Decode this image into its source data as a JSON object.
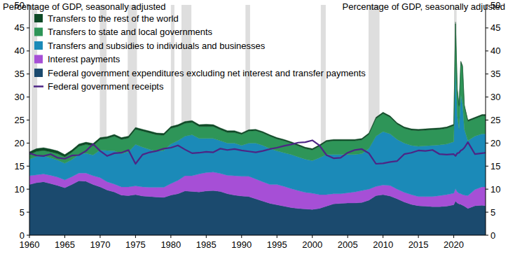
{
  "chart_data": {
    "type": "area",
    "ylabel": "Percentage of GDP, seasonally adjusted",
    "y2label": "Percentage of GDP, seasonally adjusted",
    "stacked": true,
    "grid": false,
    "legend": "top-left",
    "xlim": [
      1960,
      2024.5
    ],
    "xticks": [
      1960,
      1965,
      1970,
      1975,
      1980,
      1985,
      1990,
      1995,
      2000,
      2005,
      2010,
      2015,
      2020
    ],
    "ylim": [
      0,
      50
    ],
    "yticks": [
      0,
      5,
      10,
      15,
      20,
      25,
      30,
      35,
      40,
      45,
      50
    ],
    "y2lim": [
      0,
      50
    ],
    "y2ticks": [
      0,
      5,
      10,
      15,
      20,
      25,
      30,
      35,
      40,
      45,
      50
    ],
    "recessions": [
      [
        1960.3,
        1961.1
      ],
      [
        1969.95,
        1970.9
      ],
      [
        1973.9,
        1975.2
      ],
      [
        1980.0,
        1980.5
      ],
      [
        1981.5,
        1982.9
      ],
      [
        1990.55,
        1991.2
      ],
      [
        2001.2,
        2001.9
      ],
      [
        2007.95,
        2009.5
      ],
      [
        2020.05,
        2020.4
      ]
    ],
    "x": [
      1960,
      1961,
      1962,
      1963,
      1964,
      1965,
      1966,
      1967,
      1968,
      1969,
      1970,
      1971,
      1972,
      1973,
      1974,
      1975,
      1976,
      1977,
      1978,
      1979,
      1980,
      1981,
      1982,
      1983,
      1984,
      1985,
      1986,
      1987,
      1988,
      1989,
      1990,
      1991,
      1992,
      1993,
      1994,
      1995,
      1996,
      1997,
      1998,
      1999,
      2000,
      2001,
      2002,
      2003,
      2004,
      2005,
      2006,
      2007,
      2008,
      2009,
      2010,
      2011,
      2012,
      2013,
      2014,
      2015,
      2016,
      2017,
      2018,
      2019,
      2020,
      2020.25,
      2020.5,
      2020.75,
      2021,
      2021.25,
      2021.5,
      2022,
      2023,
      2024,
      2024.5
    ],
    "series": [
      {
        "name": "Transfers to the rest of the world",
        "type": "area",
        "color": "#0e4a26",
        "values": [
          0.6,
          0.6,
          0.6,
          0.6,
          0.6,
          0.5,
          0.5,
          0.5,
          0.5,
          0.5,
          0.4,
          0.4,
          0.4,
          0.4,
          0.4,
          0.4,
          0.4,
          0.4,
          0.4,
          0.4,
          0.4,
          0.4,
          0.4,
          0.4,
          0.4,
          0.5,
          0.4,
          0.4,
          0.4,
          0.4,
          0.3,
          0.3,
          0.3,
          0.3,
          0.3,
          0.3,
          0.3,
          0.3,
          0.3,
          0.3,
          0.3,
          0.3,
          0.3,
          0.3,
          0.3,
          0.3,
          0.3,
          0.3,
          0.3,
          0.3,
          0.3,
          0.3,
          0.3,
          0.3,
          0.3,
          0.3,
          0.3,
          0.3,
          0.3,
          0.3,
          0.3,
          0.4,
          0.3,
          0.3,
          0.3,
          0.3,
          0.3,
          0.3,
          0.3,
          0.3,
          0.3
        ]
      },
      {
        "name": "Transfers to state and local governments",
        "type": "area",
        "color": "#2e9558",
        "values": [
          1.0,
          1.1,
          1.2,
          1.3,
          1.4,
          1.4,
          1.6,
          1.8,
          1.9,
          2.0,
          2.3,
          2.6,
          3.2,
          3.1,
          3.0,
          3.3,
          3.5,
          3.6,
          3.6,
          3.3,
          3.4,
          3.1,
          2.8,
          2.7,
          2.6,
          2.6,
          2.6,
          2.4,
          2.3,
          2.3,
          2.4,
          2.6,
          2.7,
          2.7,
          2.7,
          2.6,
          2.6,
          2.5,
          2.4,
          2.3,
          2.3,
          2.5,
          2.8,
          3.0,
          3.0,
          3.0,
          3.0,
          3.0,
          3.1,
          3.8,
          3.9,
          3.6,
          3.3,
          3.2,
          3.3,
          3.4,
          3.4,
          3.4,
          3.4,
          3.4,
          3.5,
          8.8,
          5.5,
          5.0,
          7.0,
          8.0,
          5.0,
          4.2,
          3.8,
          3.9,
          3.9
        ]
      },
      {
        "name": "Transfers and subsidies to individuals and businesses",
        "type": "area",
        "color": "#1b8ab8",
        "values": [
          3.6,
          4.0,
          3.9,
          3.8,
          3.7,
          3.6,
          3.7,
          4.0,
          4.3,
          4.5,
          6.0,
          6.8,
          7.2,
          7.2,
          7.6,
          9.0,
          8.6,
          8.2,
          7.8,
          8.0,
          8.6,
          8.6,
          8.6,
          8.9,
          7.7,
          7.4,
          7.3,
          7.1,
          7.0,
          7.1,
          6.7,
          7.2,
          7.8,
          7.9,
          7.8,
          7.3,
          7.3,
          7.4,
          7.3,
          7.2,
          7.1,
          8.0,
          8.7,
          8.5,
          8.5,
          8.3,
          8.1,
          8.0,
          8.8,
          10.9,
          11.6,
          11.2,
          10.8,
          10.7,
          10.7,
          10.9,
          11.0,
          11.1,
          11.0,
          11.0,
          11.2,
          27.0,
          16.6,
          13.9,
          21.5,
          19.7,
          14.3,
          11.9,
          11.6,
          11.5,
          11.5
        ]
      },
      {
        "name": "Interest payments",
        "type": "area",
        "color": "#a64fd6",
        "values": [
          1.9,
          1.7,
          1.7,
          1.8,
          1.8,
          1.7,
          1.7,
          1.7,
          1.8,
          1.9,
          2.0,
          1.8,
          1.7,
          1.8,
          1.9,
          1.9,
          2.0,
          2.0,
          2.1,
          2.2,
          2.5,
          2.9,
          3.3,
          3.4,
          3.9,
          4.0,
          4.0,
          3.9,
          4.0,
          4.2,
          4.3,
          4.4,
          4.3,
          4.2,
          4.1,
          4.4,
          4.3,
          4.1,
          3.9,
          3.6,
          3.5,
          3.0,
          2.5,
          2.2,
          2.1,
          2.2,
          2.4,
          2.6,
          2.4,
          2.0,
          2.1,
          2.3,
          2.1,
          2.1,
          2.1,
          2.0,
          2.1,
          2.2,
          2.4,
          2.5,
          2.5,
          2.7,
          2.4,
          2.3,
          2.3,
          2.3,
          2.4,
          2.8,
          3.5,
          4.0,
          4.1
        ]
      },
      {
        "name": "Federal government expenditures excluding net interest and transfer payments",
        "type": "area",
        "color": "#1b4a6e",
        "values": [
          11.0,
          11.4,
          11.6,
          11.2,
          10.8,
          10.3,
          11.0,
          11.8,
          11.7,
          11.0,
          10.5,
          9.8,
          9.4,
          8.7,
          8.6,
          8.8,
          8.5,
          8.4,
          8.3,
          8.2,
          8.7,
          9.0,
          9.6,
          9.5,
          9.4,
          9.6,
          9.7,
          9.5,
          9.0,
          8.7,
          8.5,
          8.4,
          7.9,
          7.4,
          6.9,
          6.6,
          6.3,
          6.0,
          5.8,
          5.7,
          5.6,
          5.8,
          6.3,
          6.8,
          6.9,
          7.0,
          7.0,
          7.1,
          7.6,
          8.6,
          8.8,
          8.5,
          7.9,
          7.2,
          6.7,
          6.4,
          6.3,
          6.2,
          6.2,
          6.3,
          6.6,
          7.4,
          7.0,
          6.8,
          6.7,
          6.5,
          6.3,
          5.8,
          6.4,
          6.5,
          6.4
        ]
      },
      {
        "name": "Federal government receipts",
        "type": "line",
        "color": "#4d2585",
        "values": [
          17.8,
          17.3,
          17.2,
          17.6,
          16.8,
          16.6,
          17.3,
          17.4,
          18.3,
          19.8,
          18.3,
          17.2,
          17.8,
          17.9,
          18.5,
          15.5,
          17.5,
          18.0,
          18.3,
          18.8,
          19.0,
          19.5,
          18.6,
          17.8,
          17.9,
          18.1,
          18.0,
          18.8,
          18.5,
          18.7,
          18.4,
          18.2,
          18.0,
          18.3,
          18.7,
          19.0,
          19.4,
          19.7,
          20.1,
          20.2,
          20.6,
          19.5,
          17.4,
          16.7,
          16.8,
          17.9,
          18.5,
          18.7,
          17.8,
          15.5,
          15.6,
          15.9,
          16.1,
          17.6,
          17.9,
          18.4,
          18.3,
          18.5,
          17.6,
          17.5,
          17.6,
          17.2,
          17.8,
          17.9,
          18.4,
          18.6,
          19.0,
          20.2,
          17.6,
          17.8,
          17.9
        ]
      }
    ]
  }
}
